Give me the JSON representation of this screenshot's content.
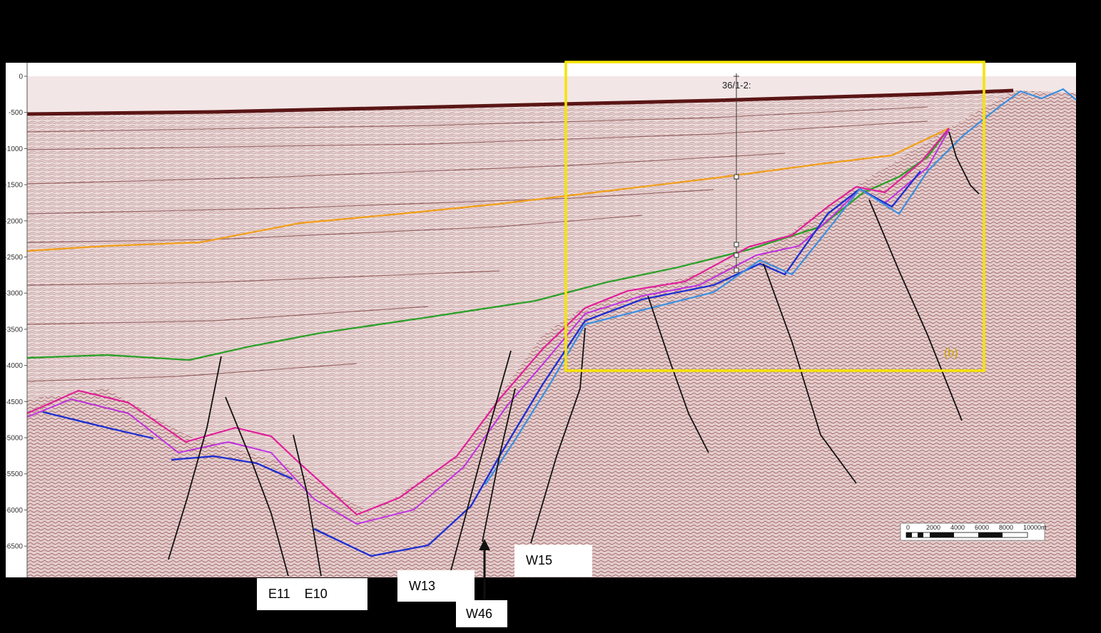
{
  "depth_axis": {
    "ticks": [
      "0",
      "-500",
      "-1000",
      "-1500",
      "-2000",
      "-2500",
      "-3000",
      "-3500",
      "-4000",
      "-4500",
      "-5000",
      "-5500",
      "-6000",
      "-6500"
    ]
  },
  "well": {
    "name": "36/1-2:"
  },
  "highlight_box": {
    "label": "(b)",
    "color": "#f5e400"
  },
  "scale_bar": {
    "labels": [
      "0",
      "2000",
      "4000",
      "6000",
      "8000",
      "10000m"
    ]
  },
  "fault_labels": {
    "E11": "E11",
    "E10": "E10",
    "W13": "W13",
    "W46": "W46",
    "W15": "W15"
  },
  "horizon_colors": {
    "orange": "#f0a020",
    "green": "#2ea02a",
    "magenta": "#e0209a",
    "violet": "#c030e0",
    "blue": "#2030d0",
    "lightblue": "#3a8fe0"
  },
  "background": {
    "seismic_tint": "#e9d2d2",
    "seabed_band": "#5a1515",
    "fault_line": "#111111"
  }
}
